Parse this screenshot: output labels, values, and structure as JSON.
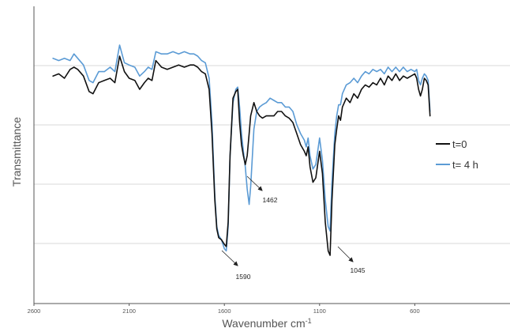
{
  "chart_data": {
    "type": "line",
    "xlabel": "Wavenumber  cm",
    "xlabel_sup": "-1",
    "ylabel": "Transmittance",
    "xlim": [
      2600,
      100
    ],
    "x_reversed": true,
    "x_ticks": [
      2600,
      2100,
      1600,
      1100,
      600
    ],
    "x_tick_labels": [
      "2600",
      "2100",
      "1600",
      "1100",
      "600"
    ],
    "y_gridlines": 4,
    "y_tick_labels_shown": false,
    "grid": "horizontal",
    "legend_position": "right",
    "series": [
      {
        "name": "t=0",
        "color": "#111111",
        "points": [
          [
            2500,
            76
          ],
          [
            2470,
            77
          ],
          [
            2440,
            75
          ],
          [
            2410,
            79
          ],
          [
            2390,
            80
          ],
          [
            2370,
            79
          ],
          [
            2340,
            76
          ],
          [
            2310,
            69
          ],
          [
            2290,
            68
          ],
          [
            2260,
            73
          ],
          [
            2230,
            74
          ],
          [
            2200,
            75
          ],
          [
            2175,
            73
          ],
          [
            2150,
            85
          ],
          [
            2125,
            78
          ],
          [
            2100,
            75
          ],
          [
            2070,
            74
          ],
          [
            2045,
            70
          ],
          [
            2020,
            73
          ],
          [
            2000,
            75
          ],
          [
            1980,
            74
          ],
          [
            1960,
            83
          ],
          [
            1930,
            80
          ],
          [
            1900,
            79
          ],
          [
            1870,
            80
          ],
          [
            1840,
            81
          ],
          [
            1810,
            80
          ],
          [
            1780,
            81
          ],
          [
            1760,
            81
          ],
          [
            1740,
            80
          ],
          [
            1720,
            78
          ],
          [
            1700,
            77
          ],
          [
            1680,
            70
          ],
          [
            1665,
            50
          ],
          [
            1650,
            20
          ],
          [
            1640,
            7
          ],
          [
            1630,
            3
          ],
          [
            1615,
            2
          ],
          [
            1600,
            0
          ],
          [
            1590,
            -1
          ],
          [
            1580,
            10
          ],
          [
            1570,
            40
          ],
          [
            1555,
            66
          ],
          [
            1540,
            69
          ],
          [
            1530,
            70
          ],
          [
            1520,
            55
          ],
          [
            1510,
            45
          ],
          [
            1500,
            40
          ],
          [
            1490,
            36
          ],
          [
            1480,
            40
          ],
          [
            1470,
            50
          ],
          [
            1462,
            58
          ],
          [
            1445,
            64
          ],
          [
            1430,
            60
          ],
          [
            1415,
            58
          ],
          [
            1400,
            57
          ],
          [
            1380,
            58
          ],
          [
            1360,
            58
          ],
          [
            1340,
            58
          ],
          [
            1320,
            60
          ],
          [
            1300,
            60
          ],
          [
            1280,
            58
          ],
          [
            1260,
            57
          ],
          [
            1240,
            55
          ],
          [
            1220,
            50
          ],
          [
            1200,
            45
          ],
          [
            1180,
            42
          ],
          [
            1170,
            40
          ],
          [
            1160,
            44
          ],
          [
            1150,
            35
          ],
          [
            1135,
            28
          ],
          [
            1120,
            30
          ],
          [
            1100,
            42
          ],
          [
            1085,
            32
          ],
          [
            1070,
            10
          ],
          [
            1055,
            -3
          ],
          [
            1045,
            -5
          ],
          [
            1035,
            20
          ],
          [
            1020,
            45
          ],
          [
            1010,
            52
          ],
          [
            1000,
            58
          ],
          [
            990,
            56
          ],
          [
            980,
            62
          ],
          [
            960,
            66
          ],
          [
            940,
            64
          ],
          [
            920,
            68
          ],
          [
            900,
            66
          ],
          [
            880,
            70
          ],
          [
            860,
            72
          ],
          [
            840,
            71
          ],
          [
            820,
            73
          ],
          [
            800,
            72
          ],
          [
            780,
            75
          ],
          [
            760,
            72
          ],
          [
            740,
            76
          ],
          [
            720,
            74
          ],
          [
            700,
            77
          ],
          [
            680,
            74
          ],
          [
            660,
            76
          ],
          [
            640,
            75
          ],
          [
            620,
            76
          ],
          [
            600,
            77
          ],
          [
            590,
            75
          ],
          [
            580,
            70
          ],
          [
            570,
            67
          ],
          [
            560,
            70
          ],
          [
            550,
            75
          ],
          [
            540,
            74
          ],
          [
            530,
            72
          ],
          [
            520,
            58
          ]
        ]
      },
      {
        "name": "t= 4 h",
        "color": "#5b9bd5",
        "points": [
          [
            2500,
            84
          ],
          [
            2470,
            83
          ],
          [
            2440,
            84
          ],
          [
            2410,
            83
          ],
          [
            2390,
            86
          ],
          [
            2370,
            84
          ],
          [
            2340,
            81
          ],
          [
            2310,
            74
          ],
          [
            2290,
            73
          ],
          [
            2260,
            78
          ],
          [
            2230,
            78
          ],
          [
            2200,
            80
          ],
          [
            2175,
            78
          ],
          [
            2150,
            90
          ],
          [
            2125,
            82
          ],
          [
            2100,
            81
          ],
          [
            2070,
            80
          ],
          [
            2045,
            76
          ],
          [
            2020,
            78
          ],
          [
            2000,
            80
          ],
          [
            1980,
            79
          ],
          [
            1960,
            87
          ],
          [
            1930,
            86
          ],
          [
            1900,
            86
          ],
          [
            1870,
            87
          ],
          [
            1840,
            86
          ],
          [
            1810,
            87
          ],
          [
            1780,
            86
          ],
          [
            1760,
            86
          ],
          [
            1740,
            85
          ],
          [
            1720,
            83
          ],
          [
            1700,
            82
          ],
          [
            1680,
            75
          ],
          [
            1665,
            55
          ],
          [
            1650,
            22
          ],
          [
            1640,
            8
          ],
          [
            1630,
            4
          ],
          [
            1615,
            2
          ],
          [
            1600,
            -2
          ],
          [
            1590,
            -3
          ],
          [
            1580,
            8
          ],
          [
            1570,
            40
          ],
          [
            1555,
            64
          ],
          [
            1540,
            70
          ],
          [
            1530,
            71
          ],
          [
            1520,
            62
          ],
          [
            1510,
            50
          ],
          [
            1500,
            42
          ],
          [
            1490,
            35
          ],
          [
            1480,
            25
          ],
          [
            1470,
            18
          ],
          [
            1462,
            26
          ],
          [
            1445,
            52
          ],
          [
            1430,
            60
          ],
          [
            1415,
            62
          ],
          [
            1400,
            63
          ],
          [
            1380,
            64
          ],
          [
            1360,
            66
          ],
          [
            1340,
            65
          ],
          [
            1320,
            64
          ],
          [
            1300,
            64
          ],
          [
            1280,
            62
          ],
          [
            1260,
            62
          ],
          [
            1240,
            60
          ],
          [
            1220,
            54
          ],
          [
            1200,
            50
          ],
          [
            1180,
            47
          ],
          [
            1170,
            44
          ],
          [
            1160,
            48
          ],
          [
            1150,
            40
          ],
          [
            1135,
            34
          ],
          [
            1120,
            36
          ],
          [
            1100,
            48
          ],
          [
            1085,
            38
          ],
          [
            1070,
            20
          ],
          [
            1055,
            8
          ],
          [
            1045,
            6
          ],
          [
            1035,
            28
          ],
          [
            1020,
            50
          ],
          [
            1010,
            58
          ],
          [
            1000,
            63
          ],
          [
            990,
            63
          ],
          [
            980,
            68
          ],
          [
            960,
            72
          ],
          [
            940,
            73
          ],
          [
            920,
            75
          ],
          [
            900,
            73
          ],
          [
            880,
            76
          ],
          [
            860,
            78
          ],
          [
            840,
            77
          ],
          [
            820,
            79
          ],
          [
            800,
            78
          ],
          [
            780,
            79
          ],
          [
            760,
            77
          ],
          [
            740,
            80
          ],
          [
            720,
            78
          ],
          [
            700,
            80
          ],
          [
            680,
            78
          ],
          [
            660,
            80
          ],
          [
            640,
            78
          ],
          [
            620,
            79
          ],
          [
            600,
            78
          ],
          [
            590,
            79
          ],
          [
            580,
            74
          ],
          [
            570,
            72
          ],
          [
            560,
            75
          ],
          [
            550,
            77
          ],
          [
            540,
            76
          ],
          [
            530,
            74
          ],
          [
            520,
            60
          ]
        ]
      }
    ],
    "annotations": [
      {
        "label": "1462",
        "x": 1462
      },
      {
        "label": "1590",
        "x": 1590
      },
      {
        "label": "1045",
        "x": 1045
      }
    ]
  }
}
